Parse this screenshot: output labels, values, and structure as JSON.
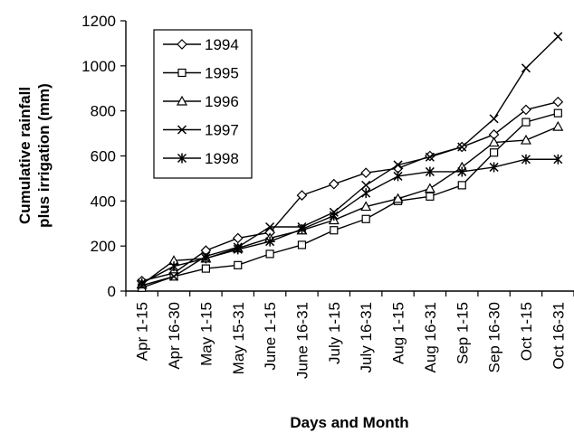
{
  "chart_data": {
    "type": "line",
    "xlabel": "Days and Month",
    "ylabel": [
      "Cumulative rainfall",
      "plus irrigation (mm)"
    ],
    "ylim": [
      0,
      1200
    ],
    "yticks": [
      0,
      200,
      400,
      600,
      800,
      1000,
      1200
    ],
    "grid": false,
    "legend_position": "top-left",
    "categories": [
      "Apr 1-15",
      "Apr 16-30",
      "May 1-15",
      "May 15-31",
      "June 1-15",
      "June 16-31",
      "July 1-15",
      "July 16-31",
      "Aug 1-15",
      "Aug 16-31",
      "Sep 1-15",
      "Sep 16-30",
      "Oct 1-15",
      "Oct 16-31"
    ],
    "series": [
      {
        "name": "1994",
        "marker": "diamond",
        "values": [
          45,
          80,
          180,
          235,
          260,
          425,
          475,
          525,
          545,
          600,
          640,
          695,
          805,
          840
        ]
      },
      {
        "name": "1995",
        "marker": "square",
        "values": [
          15,
          65,
          100,
          115,
          165,
          205,
          270,
          320,
          400,
          420,
          470,
          615,
          750,
          790
        ]
      },
      {
        "name": "1996",
        "marker": "triangle",
        "values": [
          30,
          135,
          145,
          190,
          235,
          270,
          315,
          375,
          410,
          455,
          550,
          660,
          670,
          730
        ]
      },
      {
        "name": "1997",
        "marker": "x",
        "values": [
          25,
          65,
          155,
          195,
          285,
          285,
          350,
          470,
          560,
          595,
          640,
          765,
          990,
          1130
        ]
      },
      {
        "name": "1998",
        "marker": "asterisk",
        "values": [
          35,
          110,
          145,
          185,
          220,
          275,
          335,
          435,
          510,
          530,
          530,
          550,
          585,
          585
        ]
      }
    ]
  }
}
